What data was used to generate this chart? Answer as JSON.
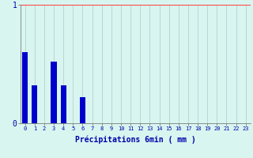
{
  "xlabel": "Précipitations 6min ( mm )",
  "background_color": "#d8f5f0",
  "bar_color": "#0000cc",
  "grid_color": "#b0c8c8",
  "axis_color": "#666666",
  "text_color": "#0000aa",
  "red_line_color": "#ff4444",
  "hours": [
    0,
    1,
    2,
    3,
    4,
    5,
    6,
    7,
    8,
    9,
    10,
    11,
    12,
    13,
    14,
    15,
    16,
    17,
    18,
    19,
    20,
    21,
    22,
    23
  ],
  "values": [
    0.6,
    0.32,
    0.0,
    0.52,
    0.32,
    0.0,
    0.22,
    0.0,
    0.0,
    0.0,
    0.0,
    0.0,
    0.0,
    0.0,
    0.0,
    0.0,
    0.0,
    0.0,
    0.0,
    0.0,
    0.0,
    0.0,
    0.0,
    0.0
  ],
  "ylim": [
    0,
    1.0
  ],
  "yticks": [
    0,
    1
  ],
  "xlim": [
    -0.5,
    23.5
  ],
  "bar_width": 0.6
}
